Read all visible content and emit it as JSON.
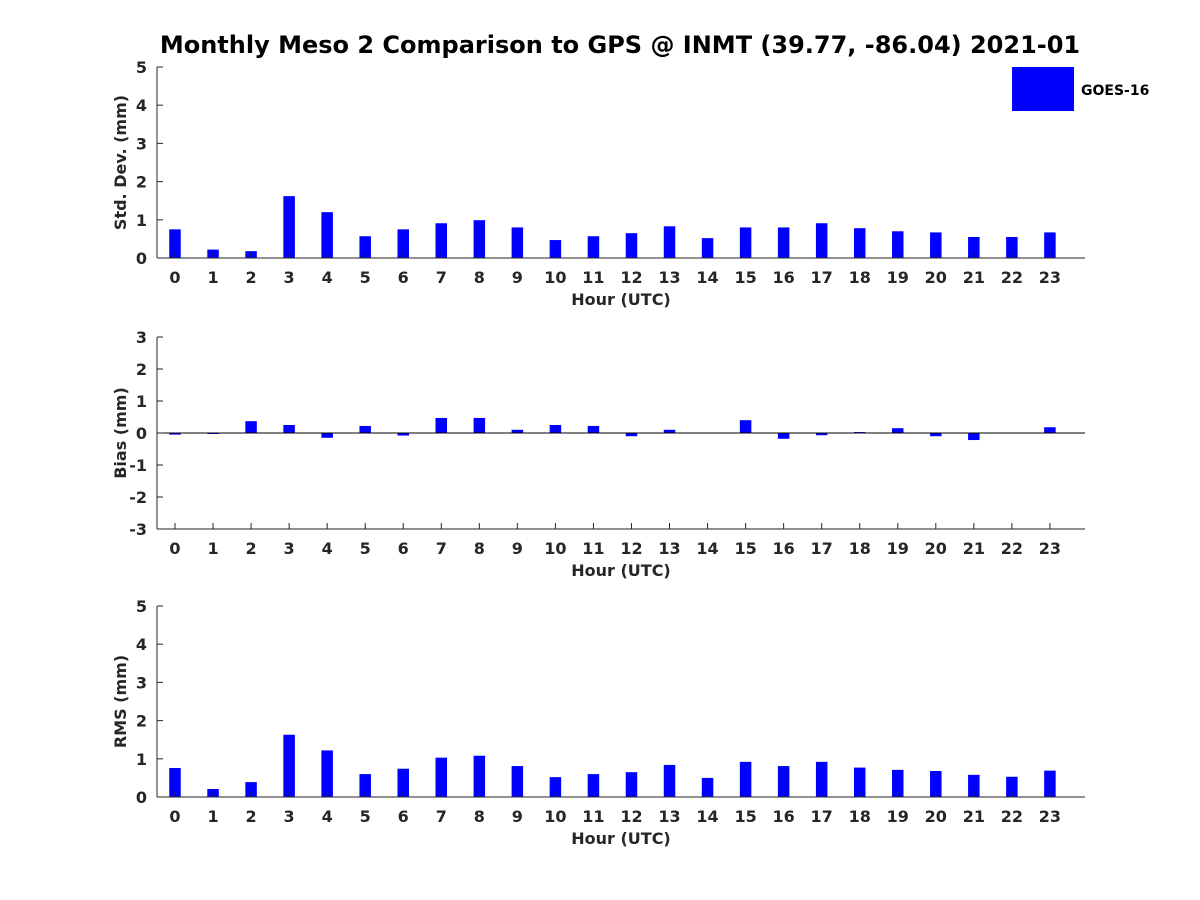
{
  "title": "Monthly Meso 2 Comparison to GPS @ INMT (39.77, -86.04) 2021-01",
  "legend": {
    "label": "GOES-16",
    "color": "#0000ff",
    "placement": "top-right"
  },
  "chart_data": [
    {
      "type": "bar",
      "xlabel": "Hour (UTC)",
      "ylabel": "Std. Dev. (mm)",
      "ylim": [
        0,
        5
      ],
      "yticks": [
        0,
        1,
        2,
        3,
        4,
        5
      ],
      "categories": [
        0,
        1,
        2,
        3,
        4,
        5,
        6,
        7,
        8,
        9,
        10,
        11,
        12,
        13,
        14,
        15,
        16,
        17,
        18,
        19,
        20,
        21,
        22,
        23
      ],
      "series": [
        {
          "name": "GOES-16",
          "color": "#0000ff",
          "values": [
            0.75,
            0.22,
            0.18,
            1.62,
            1.2,
            0.57,
            0.75,
            0.91,
            0.99,
            0.8,
            0.47,
            0.57,
            0.65,
            0.83,
            0.52,
            0.8,
            0.8,
            0.91,
            0.78,
            0.7,
            0.67,
            0.55,
            0.55,
            0.67
          ]
        }
      ],
      "grid": false
    },
    {
      "type": "bar",
      "xlabel": "Hour (UTC)",
      "ylabel": "Bias (mm)",
      "ylim": [
        -3,
        3
      ],
      "yticks": [
        -3,
        -2,
        -1,
        0,
        1,
        2,
        3
      ],
      "categories": [
        0,
        1,
        2,
        3,
        4,
        5,
        6,
        7,
        8,
        9,
        10,
        11,
        12,
        13,
        14,
        15,
        16,
        17,
        18,
        19,
        20,
        21,
        22,
        23
      ],
      "series": [
        {
          "name": "GOES-16",
          "color": "#0000ff",
          "values": [
            -0.05,
            -0.02,
            0.37,
            0.25,
            -0.15,
            0.22,
            -0.08,
            0.47,
            0.47,
            0.1,
            0.25,
            0.22,
            -0.1,
            0.1,
            0.0,
            0.4,
            -0.18,
            -0.07,
            0.03,
            0.15,
            -0.1,
            -0.22,
            0.0,
            0.18
          ]
        }
      ],
      "grid": false
    },
    {
      "type": "bar",
      "xlabel": "Hour (UTC)",
      "ylabel": "RMS (mm)",
      "ylim": [
        0,
        5
      ],
      "yticks": [
        0,
        1,
        2,
        3,
        4,
        5
      ],
      "categories": [
        0,
        1,
        2,
        3,
        4,
        5,
        6,
        7,
        8,
        9,
        10,
        11,
        12,
        13,
        14,
        15,
        16,
        17,
        18,
        19,
        20,
        21,
        22,
        23
      ],
      "series": [
        {
          "name": "GOES-16",
          "color": "#0000ff",
          "values": [
            0.76,
            0.21,
            0.39,
            1.63,
            1.22,
            0.6,
            0.74,
            1.03,
            1.08,
            0.81,
            0.52,
            0.6,
            0.65,
            0.84,
            0.5,
            0.92,
            0.81,
            0.92,
            0.77,
            0.71,
            0.68,
            0.58,
            0.53,
            0.69
          ]
        }
      ],
      "grid": false
    }
  ]
}
